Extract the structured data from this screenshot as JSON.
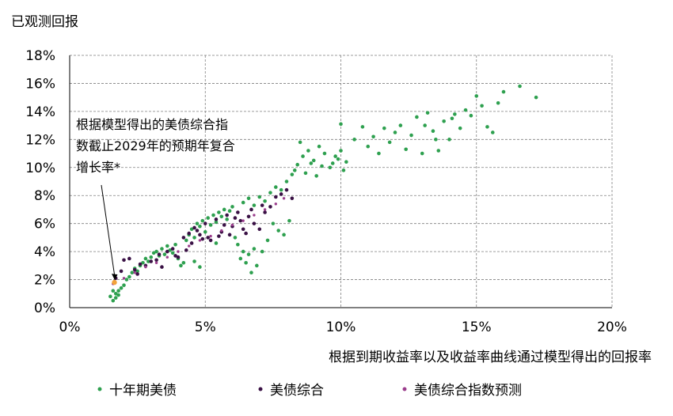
{
  "chart_data": {
    "type": "scatter",
    "ylabel": "已观测回报",
    "xlabel": "根据到期收益率以及收益率曲线通过模型得出的回报率",
    "xlim": [
      0,
      20
    ],
    "ylim": [
      0,
      18
    ],
    "x_ticks": [
      0,
      5,
      10,
      15,
      20
    ],
    "x_tick_labels": [
      "0%",
      "5%",
      "10%",
      "15%",
      "20%"
    ],
    "y_ticks": [
      0,
      2,
      4,
      6,
      8,
      10,
      12,
      14,
      16,
      18
    ],
    "y_tick_labels": [
      "0%",
      "2%",
      "4%",
      "6%",
      "8%",
      "10%",
      "12%",
      "14%",
      "16%",
      "18%"
    ],
    "grid": true,
    "legend_position": "bottom",
    "annotation": {
      "lines": [
        "根据模型得出的美债综合指",
        "数截止2029年的预期年复合",
        "增长率*"
      ],
      "target": [
        1.65,
        1.8
      ]
    },
    "series": [
      {
        "name": "十年期美债",
        "color": "#2ea04f",
        "points": [
          [
            1.5,
            0.8
          ],
          [
            1.6,
            0.5
          ],
          [
            1.7,
            1.0
          ],
          [
            1.8,
            1.2
          ],
          [
            1.9,
            1.4
          ],
          [
            1.7,
            0.7
          ],
          [
            1.6,
            1.2
          ],
          [
            1.8,
            0.9
          ],
          [
            2.0,
            1.6
          ],
          [
            2.1,
            2.0
          ],
          [
            2.2,
            2.2
          ],
          [
            2.3,
            2.5
          ],
          [
            2.4,
            2.8
          ],
          [
            2.5,
            2.6
          ],
          [
            2.6,
            3.0
          ],
          [
            2.7,
            3.2
          ],
          [
            2.8,
            3.5
          ],
          [
            2.9,
            3.3
          ],
          [
            3.0,
            3.6
          ],
          [
            3.1,
            3.9
          ],
          [
            3.2,
            4.0
          ],
          [
            3.3,
            3.7
          ],
          [
            3.4,
            4.2
          ],
          [
            3.5,
            3.8
          ],
          [
            3.6,
            4.4
          ],
          [
            3.7,
            4.1
          ],
          [
            3.8,
            3.9
          ],
          [
            3.9,
            4.5
          ],
          [
            4.0,
            3.5
          ],
          [
            4.1,
            3.0
          ],
          [
            4.2,
            3.2
          ],
          [
            4.3,
            4.8
          ],
          [
            4.4,
            5.2
          ],
          [
            4.5,
            5.6
          ],
          [
            4.6,
            5.0
          ],
          [
            4.7,
            6.0
          ],
          [
            4.8,
            5.8
          ],
          [
            4.9,
            6.2
          ],
          [
            5.0,
            5.4
          ],
          [
            5.1,
            6.4
          ],
          [
            5.2,
            5.9
          ],
          [
            5.3,
            6.6
          ],
          [
            5.4,
            6.1
          ],
          [
            5.5,
            6.8
          ],
          [
            5.6,
            6.5
          ],
          [
            5.7,
            7.0
          ],
          [
            5.8,
            6.3
          ],
          [
            5.9,
            6.9
          ],
          [
            6.0,
            7.2
          ],
          [
            6.1,
            5.0
          ],
          [
            6.2,
            4.5
          ],
          [
            6.3,
            3.5
          ],
          [
            6.4,
            4.0
          ],
          [
            6.5,
            3.2
          ],
          [
            6.6,
            3.8
          ],
          [
            6.7,
            2.5
          ],
          [
            6.8,
            4.2
          ],
          [
            6.9,
            3.0
          ],
          [
            6.4,
            7.5
          ],
          [
            6.6,
            7.8
          ],
          [
            6.8,
            7.3
          ],
          [
            7.0,
            7.9
          ],
          [
            7.2,
            7.6
          ],
          [
            7.4,
            8.2
          ],
          [
            7.6,
            8.6
          ],
          [
            7.8,
            8.4
          ],
          [
            8.0,
            9.0
          ],
          [
            8.2,
            9.5
          ],
          [
            8.4,
            10.2
          ],
          [
            8.6,
            10.8
          ],
          [
            8.8,
            11.2
          ],
          [
            9.0,
            10.5
          ],
          [
            9.2,
            11.5
          ],
          [
            9.4,
            11.0
          ],
          [
            9.6,
            10.0
          ],
          [
            9.8,
            10.8
          ],
          [
            10.0,
            11.2
          ],
          [
            10.2,
            10.4
          ],
          [
            8.3,
            9.8
          ],
          [
            8.5,
            11.8
          ],
          [
            8.7,
            9.6
          ],
          [
            8.9,
            10.3
          ],
          [
            9.1,
            9.4
          ],
          [
            9.3,
            10.1
          ],
          [
            7.5,
            6.0
          ],
          [
            7.7,
            5.5
          ],
          [
            7.9,
            5.2
          ],
          [
            8.1,
            6.2
          ],
          [
            7.3,
            4.8
          ],
          [
            7.1,
            4.0
          ],
          [
            10.0,
            13.1
          ],
          [
            10.5,
            12.0
          ],
          [
            10.8,
            12.9
          ],
          [
            11.0,
            11.5
          ],
          [
            11.2,
            12.2
          ],
          [
            11.4,
            11.0
          ],
          [
            11.6,
            12.8
          ],
          [
            11.8,
            11.8
          ],
          [
            12.0,
            12.5
          ],
          [
            12.2,
            13.0
          ],
          [
            12.4,
            11.3
          ],
          [
            12.6,
            12.3
          ],
          [
            12.8,
            13.6
          ],
          [
            13.0,
            11.0
          ],
          [
            13.2,
            13.9
          ],
          [
            13.4,
            12.6
          ],
          [
            13.6,
            11.2
          ],
          [
            13.8,
            13.3
          ],
          [
            14.0,
            12.0
          ],
          [
            14.2,
            13.8
          ],
          [
            14.4,
            12.8
          ],
          [
            14.6,
            14.1
          ],
          [
            14.8,
            13.7
          ],
          [
            15.0,
            15.1
          ],
          [
            15.2,
            14.4
          ],
          [
            15.4,
            12.9
          ],
          [
            15.6,
            12.5
          ],
          [
            15.8,
            14.6
          ],
          [
            16.0,
            15.4
          ],
          [
            16.6,
            15.8
          ],
          [
            17.2,
            15.0
          ],
          [
            13.1,
            13.0
          ],
          [
            13.5,
            12.0
          ],
          [
            14.1,
            13.5
          ],
          [
            9.7,
            10.3
          ],
          [
            10.1,
            9.8
          ],
          [
            9.9,
            10.6
          ],
          [
            4.6,
            3.3
          ],
          [
            4.8,
            2.9
          ],
          [
            5.4,
            4.6
          ]
        ]
      },
      {
        "name": "美债综合",
        "color": "#3a1145",
        "points": [
          [
            1.7,
            2.1
          ],
          [
            1.9,
            2.6
          ],
          [
            2.0,
            3.4
          ],
          [
            2.2,
            3.5
          ],
          [
            2.4,
            2.7
          ],
          [
            2.6,
            3.1
          ],
          [
            2.8,
            3.0
          ],
          [
            3.0,
            3.3
          ],
          [
            3.2,
            3.4
          ],
          [
            3.4,
            2.9
          ],
          [
            3.6,
            4.0
          ],
          [
            3.8,
            4.2
          ],
          [
            4.0,
            3.6
          ],
          [
            4.2,
            5.0
          ],
          [
            4.4,
            5.3
          ],
          [
            4.5,
            4.6
          ],
          [
            4.6,
            5.7
          ],
          [
            4.8,
            5.2
          ],
          [
            5.0,
            6.0
          ],
          [
            5.2,
            4.8
          ],
          [
            5.4,
            6.3
          ],
          [
            5.6,
            5.4
          ],
          [
            5.8,
            6.6
          ],
          [
            6.0,
            5.8
          ],
          [
            6.2,
            6.8
          ],
          [
            6.4,
            5.6
          ],
          [
            6.6,
            6.5
          ],
          [
            6.8,
            6.0
          ],
          [
            7.0,
            5.6
          ],
          [
            7.2,
            6.8
          ],
          [
            7.4,
            7.2
          ],
          [
            7.6,
            7.9
          ],
          [
            7.8,
            8.1
          ],
          [
            8.0,
            8.4
          ],
          [
            8.2,
            7.8
          ],
          [
            4.3,
            4.1
          ],
          [
            4.7,
            5.5
          ],
          [
            5.1,
            5.0
          ],
          [
            5.5,
            5.1
          ],
          [
            5.9,
            5.2
          ],
          [
            6.3,
            6.2
          ],
          [
            6.7,
            7.0
          ],
          [
            7.1,
            7.3
          ],
          [
            4.9,
            4.9
          ],
          [
            3.3,
            3.8
          ],
          [
            2.5,
            2.4
          ],
          [
            3.9,
            3.7
          ],
          [
            5.7,
            5.9
          ],
          [
            6.1,
            6.4
          ],
          [
            6.5,
            5.3
          ]
        ]
      },
      {
        "name": "美债综合指数预测",
        "color": "#9b3d8c",
        "points": [
          [
            1.6,
            1.7
          ],
          [
            2.0,
            2.1
          ],
          [
            2.4,
            2.5
          ],
          [
            2.8,
            2.9
          ],
          [
            3.2,
            3.2
          ],
          [
            3.6,
            3.6
          ],
          [
            4.0,
            4.0
          ],
          [
            4.4,
            4.4
          ],
          [
            4.8,
            4.8
          ],
          [
            5.2,
            5.1
          ],
          [
            5.6,
            5.5
          ],
          [
            6.0,
            5.9
          ],
          [
            6.4,
            6.2
          ],
          [
            6.8,
            6.6
          ],
          [
            7.2,
            7.0
          ],
          [
            7.6,
            7.4
          ],
          [
            7.9,
            7.8
          ]
        ]
      }
    ]
  }
}
